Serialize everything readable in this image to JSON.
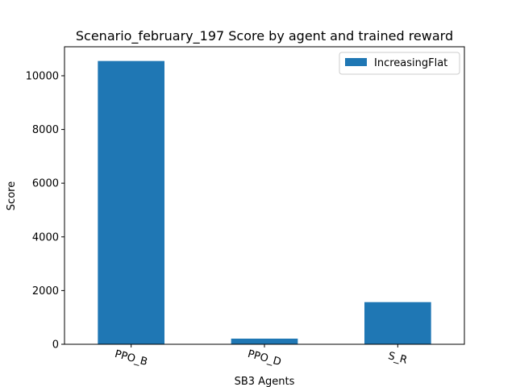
{
  "chart_data": {
    "type": "bar",
    "title": "Scenario_february_197 Score by agent and trained reward",
    "xlabel": "SB3 Agents",
    "ylabel": "Score",
    "categories": [
      "PPO_B",
      "PPO_D",
      "S_R"
    ],
    "series": [
      {
        "name": "IncreasingFlat",
        "values": [
          10550,
          210,
          1570
        ],
        "color": "#1f77b4"
      }
    ],
    "ylim": [
      0,
      11080
    ],
    "yticks": [
      0,
      2000,
      4000,
      6000,
      8000,
      10000
    ],
    "ytick_labels": [
      "0",
      "2000",
      "4000",
      "6000",
      "8000",
      "10000"
    ],
    "legend": "top-right",
    "grid": false
  }
}
